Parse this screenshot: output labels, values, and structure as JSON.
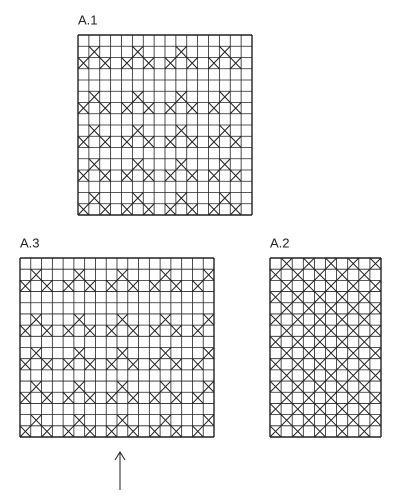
{
  "charts": [
    {
      "label": "A.1"
    },
    {
      "label": "A.3"
    },
    {
      "label": "A.2"
    }
  ]
}
